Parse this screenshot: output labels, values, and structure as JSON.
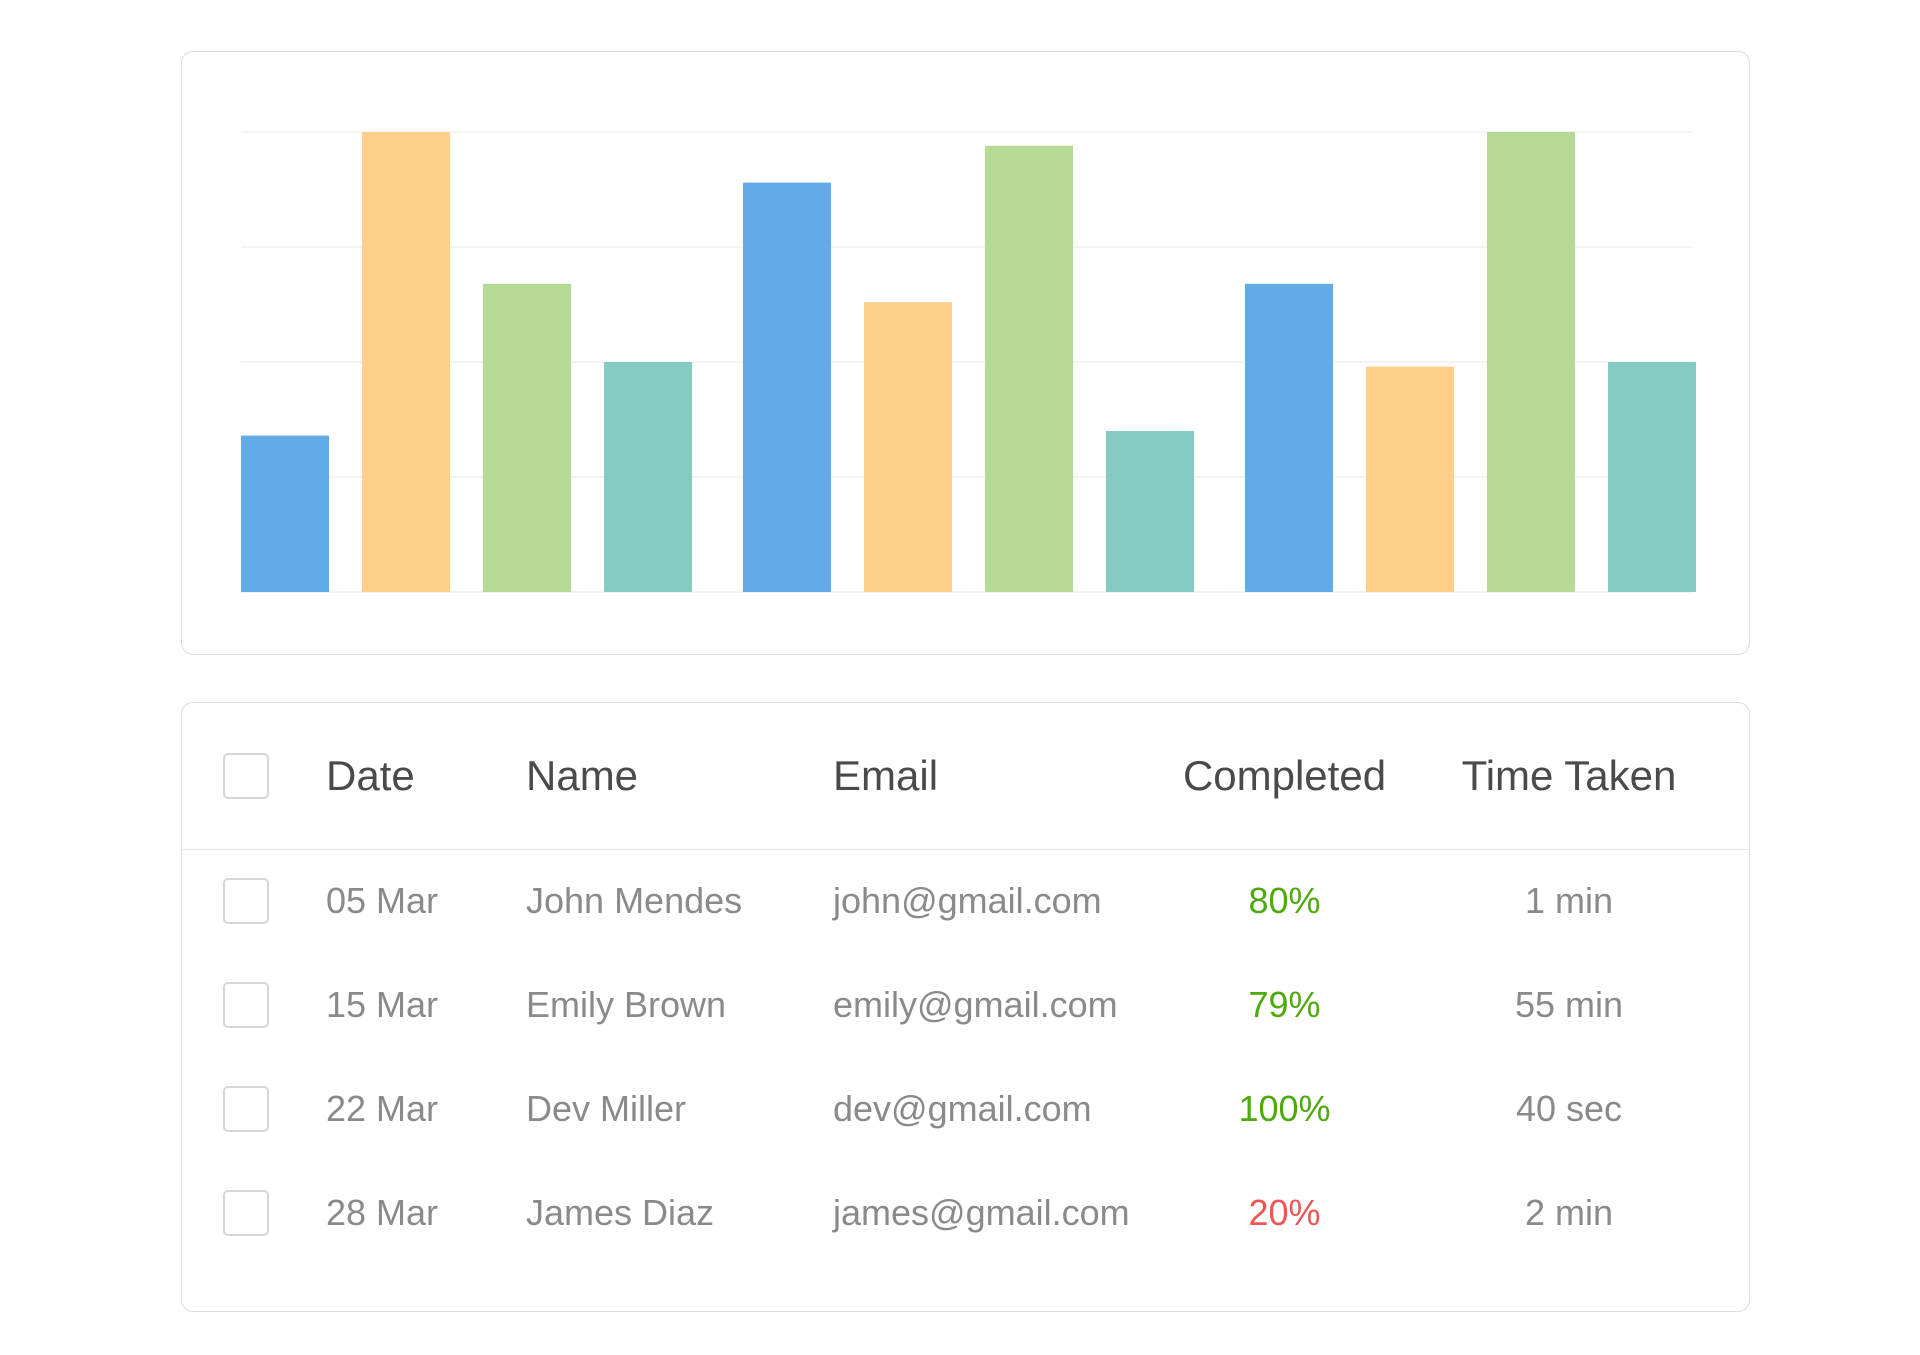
{
  "colors": {
    "blue": "#62abe6",
    "orange": "#fdcf8a",
    "green": "#b4da93",
    "teal": "#84cbc3",
    "grid": "#f0f0f0",
    "good": "#4caa0c",
    "bad": "#ee5555"
  },
  "chart_data": {
    "type": "bar",
    "grid": true,
    "ylim": [
      0,
      100
    ],
    "groups": [
      {
        "values": [
          34,
          100,
          67,
          50
        ]
      },
      {
        "values": [
          89,
          63,
          97,
          35
        ]
      },
      {
        "values": [
          67,
          49,
          100,
          50
        ]
      }
    ],
    "series_colors": [
      "blue",
      "orange",
      "green",
      "teal"
    ]
  },
  "table": {
    "headers": {
      "date": "Date",
      "name": "Name",
      "email": "Email",
      "completed": "Completed",
      "time": "Time Taken"
    },
    "rows": [
      {
        "date": "05 Mar",
        "name": "John Mendes",
        "email": "john@gmail.com",
        "completed": "80%",
        "status": "good",
        "time": "1 min"
      },
      {
        "date": "15 Mar",
        "name": "Emily Brown",
        "email": "emily@gmail.com",
        "completed": "79%",
        "status": "good",
        "time": "55 min"
      },
      {
        "date": "22 Mar",
        "name": "Dev Miller",
        "email": "dev@gmail.com",
        "completed": "100%",
        "status": "good",
        "time": "40 sec"
      },
      {
        "date": "28 Mar",
        "name": "James Diaz",
        "email": "james@gmail.com",
        "completed": "20%",
        "status": "bad",
        "time": "2 min"
      }
    ]
  }
}
